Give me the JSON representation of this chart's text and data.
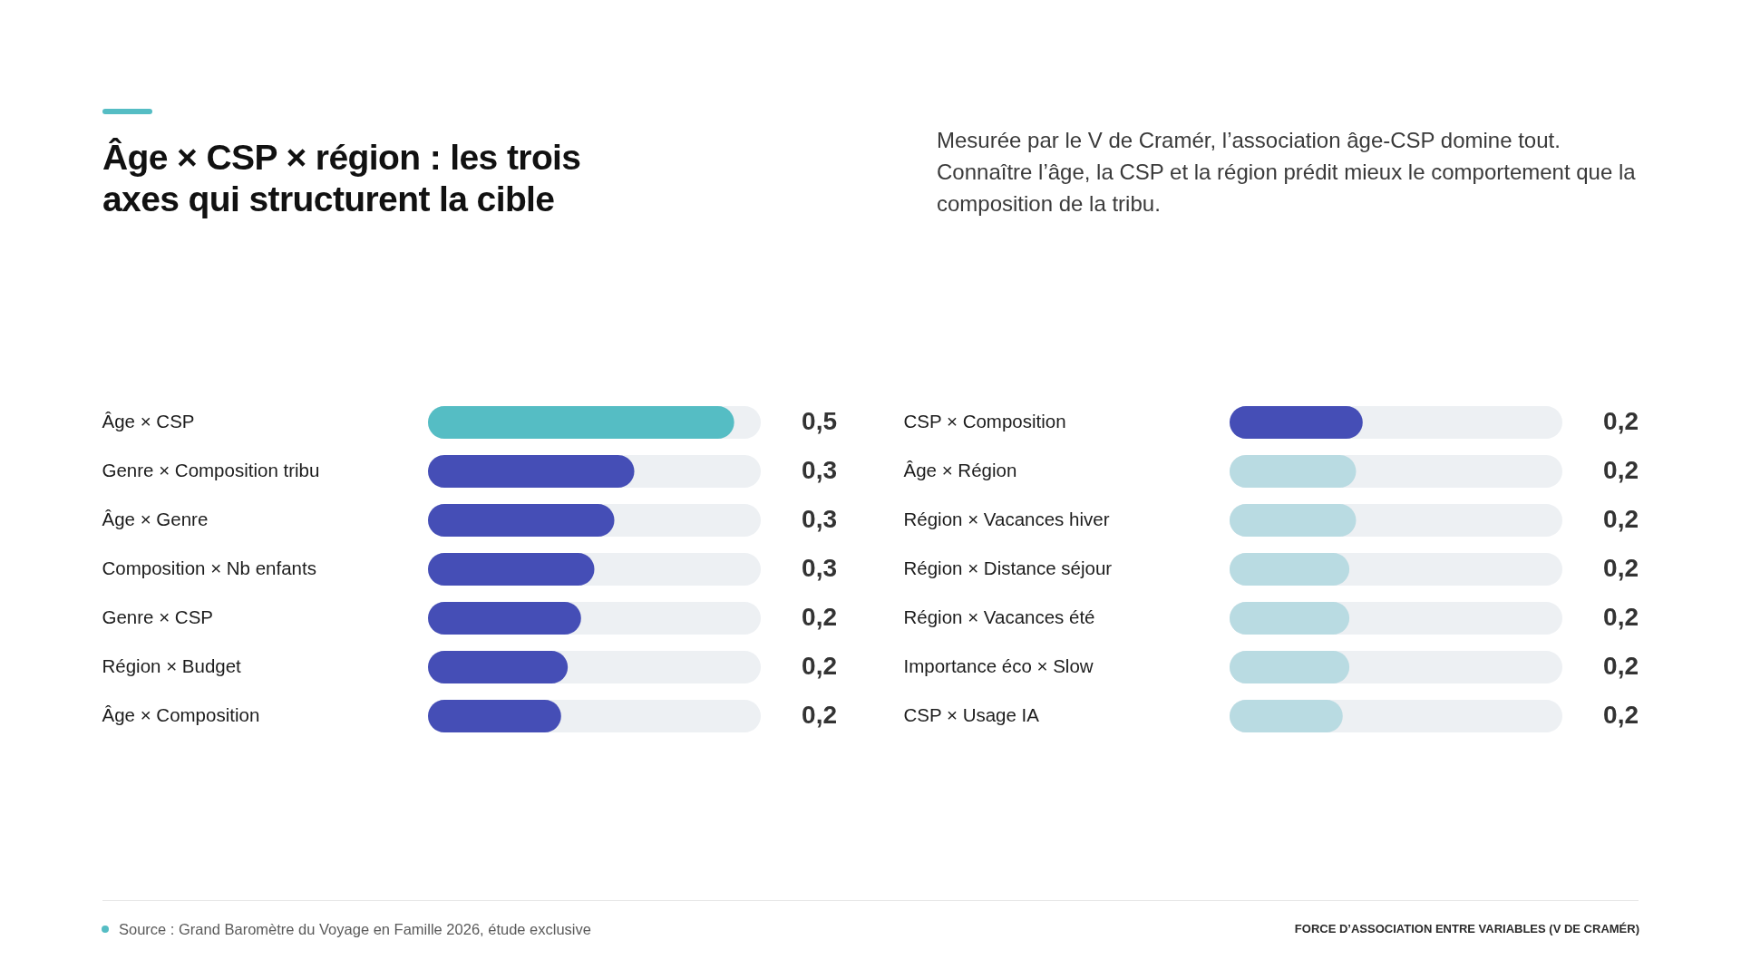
{
  "chart_data": [
    {
      "type": "bar",
      "orientation": "horizontal",
      "title": "Âge × CSP × région : les trois axes qui structurent la cible",
      "categories": [
        "Âge × CSP",
        "Genre × Composition tribu",
        "Âge × Genre",
        "Composition × Nb enfants",
        "Genre × CSP",
        "Région × Budget",
        "Âge × Composition"
      ],
      "values": [
        0.46,
        0.31,
        0.28,
        0.25,
        0.23,
        0.21,
        0.2
      ],
      "colors": [
        "#55bdc4",
        "#454eb6",
        "#454eb6",
        "#454eb6",
        "#454eb6",
        "#454eb6",
        "#454eb6"
      ],
      "value_labels": [
        "0,5",
        "0,3",
        "0,3",
        "0,3",
        "0,2",
        "0,2",
        "0,2"
      ],
      "xlim": [
        0,
        0.5
      ],
      "tick_labels": "y",
      "annotations": [
        "Source : Grand Baromètre du Voyage en Famille 2026, étude exclusive"
      ]
    },
    {
      "type": "bar",
      "orientation": "horizontal",
      "subtitle": "Mesurée par le V de Cramér, l’association âge-CSP domine tout. Connaître l’âge, la CSP et la région prédit mieux le comportement que la composition de la tribu.",
      "categories": [
        "CSP × Composition",
        "Âge × Région",
        "Région × Vacances hiver",
        "Région × Distance séjour",
        "Région × Vacances été",
        "Importance éco × Slow",
        "CSP × Usage IA"
      ],
      "values": [
        0.2,
        0.19,
        0.19,
        0.18,
        0.18,
        0.18,
        0.17
      ],
      "colors": [
        "#454eb6",
        "#b9dbe2",
        "#b9dbe2",
        "#b9dbe2",
        "#b9dbe2",
        "#b9dbe2",
        "#b9dbe2"
      ],
      "value_labels": [
        "0,2",
        "0,2",
        "0,2",
        "0,2",
        "0,2",
        "0,2",
        "0,2"
      ],
      "xlim": [
        0,
        0.5
      ],
      "tick_labels": "y",
      "annotations": [
        "FORCE D’ASSOCIATION ENTRE VARIABLES (V DE CRAMÉR)"
      ]
    }
  ]
}
